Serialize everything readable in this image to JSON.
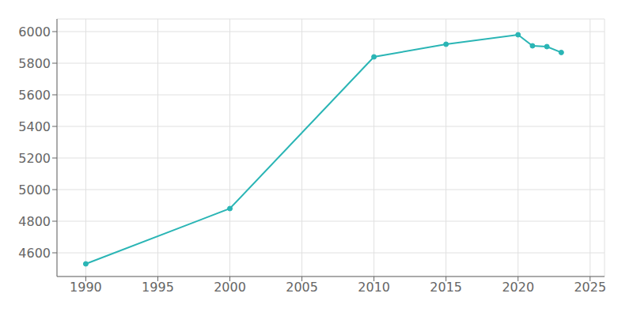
{
  "chart_data": {
    "type": "line",
    "x": [
      1990,
      2000,
      2010,
      2015,
      2020,
      2021,
      2022,
      2023
    ],
    "values": [
      4530,
      4880,
      5840,
      5920,
      5980,
      5910,
      5905,
      5868
    ],
    "color": "#2ab5b5",
    "marker": "circle",
    "grid": true,
    "xlim": [
      1988,
      2026
    ],
    "ylim": [
      4450,
      6080
    ],
    "xticks": [
      1990,
      1995,
      2000,
      2005,
      2010,
      2015,
      2020,
      2025
    ],
    "yticks": [
      4600,
      4800,
      5000,
      5200,
      5400,
      5600,
      5800,
      6000
    ]
  }
}
